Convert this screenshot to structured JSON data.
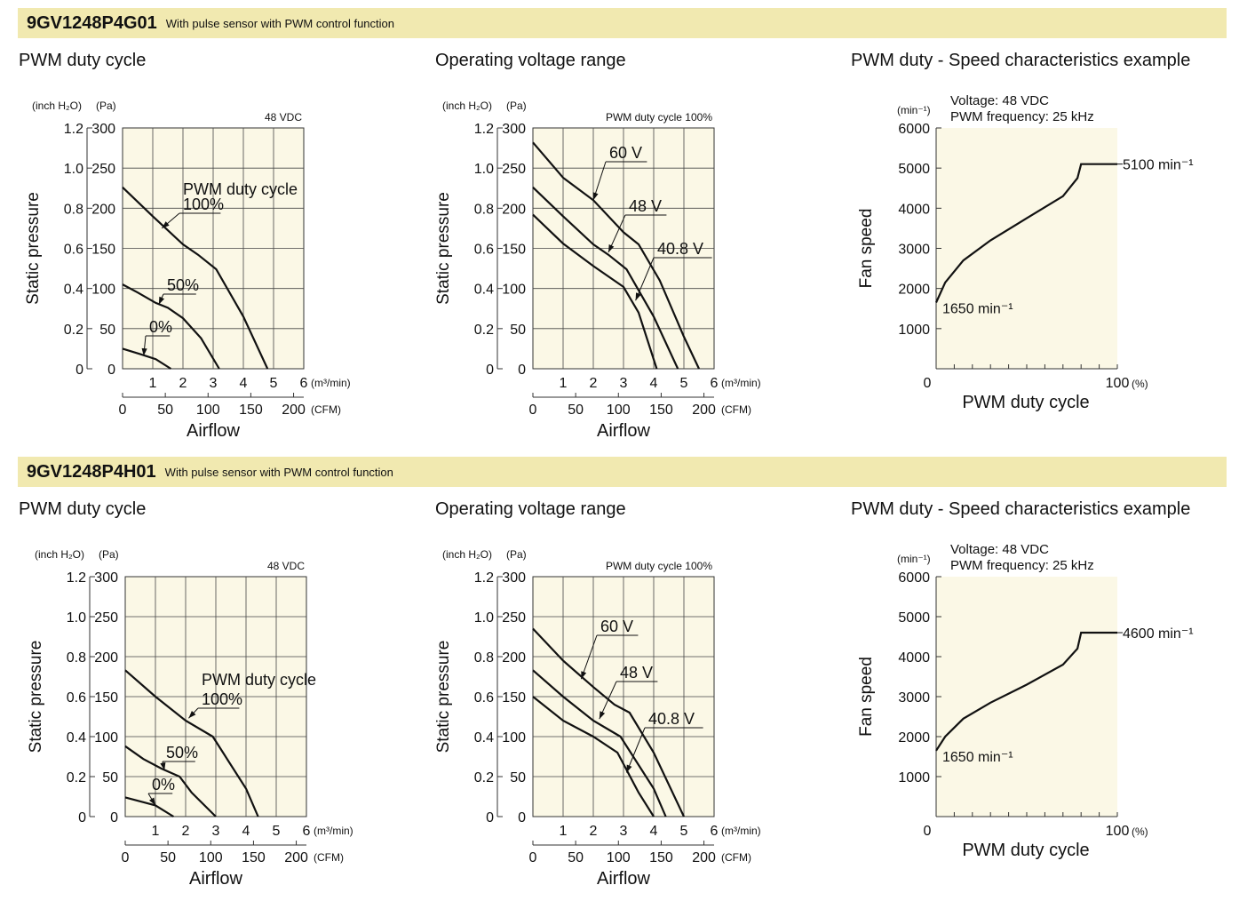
{
  "sections": [
    {
      "model": "9GV1248P4G01",
      "description": "With pulse sensor with PWM control function",
      "titles": {
        "pwm": "PWM duty cycle",
        "voltage": "Operating voltage range",
        "speed": "PWM duty - Speed characteristics example"
      }
    },
    {
      "model": "9GV1248P4H01",
      "description": "With pulse sensor with PWM control function",
      "titles": {
        "pwm": "PWM duty cycle",
        "voltage": "Operating voltage range",
        "speed": "PWM duty - Speed characteristics example"
      }
    }
  ],
  "colors": {
    "header_band": "#f1e9b0",
    "plot_fill": "#fbf8e6",
    "curve": "#111111"
  },
  "chart_data": [
    {
      "section": 0,
      "kind": "pq",
      "type": "line",
      "title": "PWM duty cycle",
      "condition": "48 VDC",
      "ylabel": "Static pressure",
      "xlabel": "Airflow",
      "yunit_left": "(inch H₂O)",
      "yunit_right": "(Pa)",
      "xunit_m3": "(m³/min)",
      "xunit_cfm": "(CFM)",
      "x_m3_ticks": [
        "1",
        "2",
        "3",
        "4",
        "5",
        "6"
      ],
      "x_cfm_ticks": [
        "0",
        "50",
        "100",
        "150",
        "200"
      ],
      "y_pa_ticks": [
        "0",
        "50",
        "100",
        "150",
        "200",
        "250",
        "300"
      ],
      "y_inch_ticks": [
        "0",
        "0.2",
        "0.4",
        "0.6",
        "0.8",
        "1.0",
        "1.2"
      ],
      "xlim": [
        0,
        6
      ],
      "ylim": [
        0,
        300
      ],
      "grid": true,
      "curve_group_label": "PWM duty cycle",
      "series": [
        {
          "name": "100%",
          "x": [
            0,
            1,
            2,
            2.5,
            3.1,
            4.0,
            4.8
          ],
          "y": [
            226,
            190,
            155,
            142,
            124,
            65,
            0
          ]
        },
        {
          "name": "50%",
          "x": [
            0,
            0.5,
            1.1,
            1.5,
            2.0,
            2.6,
            3.2
          ],
          "y": [
            105,
            95,
            82,
            76,
            63,
            38,
            0
          ]
        },
        {
          "name": "0%",
          "x": [
            0,
            0.6,
            1.1,
            1.6
          ],
          "y": [
            25,
            18,
            12,
            0
          ]
        }
      ],
      "series_labels": [
        {
          "text": "100%",
          "anchor_x": 1.3,
          "anchor_y": 175
        },
        {
          "text": "50%",
          "anchor_x": 1.2,
          "anchor_y": 80
        },
        {
          "text": "0%",
          "anchor_x": 0.7,
          "anchor_y": 16
        }
      ]
    },
    {
      "section": 0,
      "kind": "pq",
      "type": "line",
      "title": "Operating voltage range",
      "condition": "PWM duty cycle 100%",
      "ylabel": "Static pressure",
      "xlabel": "Airflow",
      "yunit_left": "(inch H₂O)",
      "yunit_right": "(Pa)",
      "xunit_m3": "(m³/min)",
      "xunit_cfm": "(CFM)",
      "x_m3_ticks": [
        "1",
        "2",
        "3",
        "4",
        "5",
        "6"
      ],
      "x_cfm_ticks": [
        "0",
        "50",
        "100",
        "150",
        "200"
      ],
      "y_pa_ticks": [
        "0",
        "50",
        "100",
        "150",
        "200",
        "250",
        "300"
      ],
      "y_inch_ticks": [
        "0",
        "0.2",
        "0.4",
        "0.6",
        "0.8",
        "1.0",
        "1.2"
      ],
      "xlim": [
        0,
        6
      ],
      "ylim": [
        0,
        300
      ],
      "grid": true,
      "curve_group_label": "",
      "series": [
        {
          "name": "60 V",
          "x": [
            0,
            1,
            2,
            3,
            3.5,
            4.2,
            5.0,
            5.5
          ],
          "y": [
            282,
            238,
            210,
            170,
            155,
            110,
            40,
            0
          ]
        },
        {
          "name": "48 V",
          "x": [
            0,
            1,
            2,
            2.5,
            3.1,
            4.0,
            4.8
          ],
          "y": [
            226,
            190,
            155,
            142,
            124,
            65,
            0
          ]
        },
        {
          "name": "40.8 V",
          "x": [
            0,
            1,
            2,
            3,
            3.5,
            4.1
          ],
          "y": [
            192,
            156,
            128,
            102,
            70,
            0
          ]
        }
      ],
      "series_labels": [
        {
          "text": "60 V",
          "anchor_x": 2.0,
          "anchor_y": 210
        },
        {
          "text": "48 V",
          "anchor_x": 2.5,
          "anchor_y": 145
        },
        {
          "text": "40.8 V",
          "anchor_x": 3.4,
          "anchor_y": 85
        }
      ]
    },
    {
      "section": 0,
      "kind": "speed",
      "type": "line",
      "title": "PWM duty - Speed characteristics example",
      "notes": [
        "Voltage: 48 VDC",
        "PWM frequency: 25 kHz"
      ],
      "ylabel": "Fan speed",
      "xlabel": "PWM duty cycle",
      "yunit": "(min⁻¹)",
      "xunit": "(%)",
      "y_ticks": [
        "1000",
        "2000",
        "3000",
        "4000",
        "5000",
        "6000"
      ],
      "x_ticks": [
        "0",
        "100"
      ],
      "xlim": [
        0,
        100
      ],
      "ylim": [
        0,
        6000
      ],
      "grid": false,
      "series": [
        {
          "name": "",
          "x": [
            0,
            5,
            15,
            30,
            50,
            70,
            78,
            80,
            82,
            100
          ],
          "y": [
            1650,
            2150,
            2700,
            3200,
            3750,
            4300,
            4750,
            5100,
            5100,
            5100
          ]
        }
      ],
      "annotations": {
        "max": "5100 min⁻¹",
        "min": "1650 min⁻¹"
      },
      "max_value": 5100,
      "min_value": 1650
    },
    {
      "section": 1,
      "kind": "pq",
      "type": "line",
      "title": "PWM duty cycle",
      "condition": "48 VDC",
      "ylabel": "Static pressure",
      "xlabel": "Airflow",
      "yunit_left": "(inch H₂O)",
      "yunit_right": "(Pa)",
      "xunit_m3": "(m³/min)",
      "xunit_cfm": "(CFM)",
      "x_m3_ticks": [
        "1",
        "2",
        "3",
        "4",
        "5",
        "6"
      ],
      "x_cfm_ticks": [
        "0",
        "50",
        "100",
        "150",
        "200"
      ],
      "y_pa_ticks": [
        "0",
        "50",
        "100",
        "150",
        "200",
        "250",
        "300"
      ],
      "y_inch_ticks": [
        "0",
        "0.2",
        "0.4",
        "0.6",
        "0.8",
        "1.0",
        "1.2"
      ],
      "xlim": [
        0,
        6
      ],
      "ylim": [
        0,
        300
      ],
      "grid": true,
      "curve_group_label": "PWM duty cycle",
      "series": [
        {
          "name": "100%",
          "x": [
            0,
            1,
            2,
            2.9,
            4.0,
            4.4
          ],
          "y": [
            183,
            150,
            120,
            100,
            35,
            0
          ]
        },
        {
          "name": "50%",
          "x": [
            0,
            0.6,
            1.2,
            1.8,
            2.2,
            3.0
          ],
          "y": [
            88,
            72,
            60,
            50,
            30,
            0
          ]
        },
        {
          "name": "0%",
          "x": [
            0,
            0.6,
            1.0,
            1.6
          ],
          "y": [
            24,
            18,
            14,
            0
          ]
        }
      ],
      "series_labels": [
        {
          "text": "100%",
          "anchor_x": 2.1,
          "anchor_y": 123
        },
        {
          "text": "50%",
          "anchor_x": 1.3,
          "anchor_y": 58
        },
        {
          "text": "0%",
          "anchor_x": 1.0,
          "anchor_y": 14
        }
      ]
    },
    {
      "section": 1,
      "kind": "pq",
      "type": "line",
      "title": "Operating voltage range",
      "condition": "PWM duty cycle 100%",
      "ylabel": "Static pressure",
      "xlabel": "Airflow",
      "yunit_left": "(inch H₂O)",
      "yunit_right": "(Pa)",
      "xunit_m3": "(m³/min)",
      "xunit_cfm": "(CFM)",
      "x_m3_ticks": [
        "1",
        "2",
        "3",
        "4",
        "5",
        "6"
      ],
      "x_cfm_ticks": [
        "0",
        "50",
        "100",
        "150",
        "200"
      ],
      "y_pa_ticks": [
        "0",
        "50",
        "100",
        "150",
        "200",
        "250",
        "300"
      ],
      "y_inch_ticks": [
        "0",
        "0.2",
        "0.4",
        "0.6",
        "0.8",
        "1.0",
        "1.2"
      ],
      "xlim": [
        0,
        6
      ],
      "ylim": [
        0,
        300
      ],
      "grid": true,
      "curve_group_label": "",
      "series": [
        {
          "name": "60 V",
          "x": [
            0,
            1,
            2,
            2.7,
            3.2,
            4.0,
            5.0
          ],
          "y": [
            235,
            195,
            162,
            140,
            130,
            80,
            0
          ]
        },
        {
          "name": "48 V",
          "x": [
            0,
            1,
            2,
            2.9,
            4.0,
            4.4
          ],
          "y": [
            183,
            150,
            120,
            100,
            35,
            0
          ]
        },
        {
          "name": "40.8 V",
          "x": [
            0,
            1,
            2,
            2.8,
            3.5,
            4.0
          ],
          "y": [
            150,
            120,
            100,
            80,
            30,
            0
          ]
        }
      ],
      "series_labels": [
        {
          "text": "60 V",
          "anchor_x": 1.6,
          "anchor_y": 172
        },
        {
          "text": "48 V",
          "anchor_x": 2.2,
          "anchor_y": 122
        },
        {
          "text": "40.8 V",
          "anchor_x": 3.1,
          "anchor_y": 55
        }
      ]
    },
    {
      "section": 1,
      "kind": "speed",
      "type": "line",
      "title": "PWM duty - Speed characteristics example",
      "notes": [
        "Voltage: 48 VDC",
        "PWM frequency: 25 kHz"
      ],
      "ylabel": "Fan speed",
      "xlabel": "PWM duty cycle",
      "yunit": "(min⁻¹)",
      "xunit": "(%)",
      "y_ticks": [
        "1000",
        "2000",
        "3000",
        "4000",
        "5000",
        "6000"
      ],
      "x_ticks": [
        "0",
        "100"
      ],
      "xlim": [
        0,
        100
      ],
      "ylim": [
        0,
        6000
      ],
      "grid": false,
      "series": [
        {
          "name": "",
          "x": [
            0,
            5,
            15,
            30,
            50,
            70,
            78,
            80,
            82,
            100
          ],
          "y": [
            1650,
            2000,
            2450,
            2850,
            3300,
            3800,
            4200,
            4600,
            4600,
            4600
          ]
        }
      ],
      "annotations": {
        "max": "4600 min⁻¹",
        "min": "1650 min⁻¹"
      },
      "max_value": 4600,
      "min_value": 1650
    }
  ]
}
